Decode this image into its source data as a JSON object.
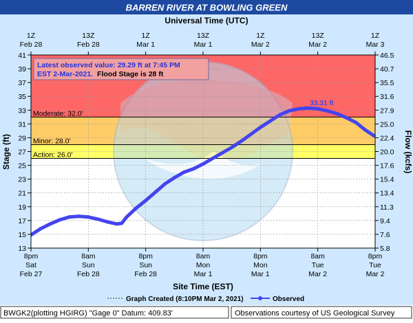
{
  "chart_data": {
    "type": "line",
    "title": "BARREN RIVER AT BOWLING GREEN",
    "top_axis_title": "Universal Time (UTC)",
    "top_ticks": [
      {
        "time": "2021-02-28T01:00Z",
        "line1": "1Z",
        "line2": "Feb 28"
      },
      {
        "time": "2021-02-28T13:00Z",
        "line1": "13Z",
        "line2": "Feb 28"
      },
      {
        "time": "2021-03-01T01:00Z",
        "line1": "1Z",
        "line2": "Mar  1"
      },
      {
        "time": "2021-03-01T13:00Z",
        "line1": "13Z",
        "line2": "Mar  1"
      },
      {
        "time": "2021-03-02T01:00Z",
        "line1": "1Z",
        "line2": "Mar  2"
      },
      {
        "time": "2021-03-02T13:00Z",
        "line1": "13Z",
        "line2": "Mar  2"
      },
      {
        "time": "2021-03-03T01:00Z",
        "line1": "1Z",
        "line2": "Mar  3"
      }
    ],
    "bottom_axis_title": "Site Time (EST)",
    "bottom_ticks": [
      {
        "time": "2021-02-27T20:00",
        "line1": "8pm",
        "line2": "Sat",
        "line3": "Feb 27"
      },
      {
        "time": "2021-02-28T08:00",
        "line1": "8am",
        "line2": "Sun",
        "line3": "Feb 28"
      },
      {
        "time": "2021-02-28T20:00",
        "line1": "8pm",
        "line2": "Sun",
        "line3": "Feb 28"
      },
      {
        "time": "2021-03-01T08:00",
        "line1": "8am",
        "line2": "Mon",
        "line3": "Mar 1"
      },
      {
        "time": "2021-03-01T20:00",
        "line1": "8pm",
        "line2": "Mon",
        "line3": "Mar 1"
      },
      {
        "time": "2021-03-02T08:00",
        "line1": "8am",
        "line2": "Tue",
        "line3": "Mar 2"
      },
      {
        "time": "2021-03-02T20:00",
        "line1": "8pm",
        "line2": "Tue",
        "line3": "Mar 2"
      }
    ],
    "xlim": [
      "2021-02-27T20:00",
      "2021-03-02T20:00"
    ],
    "ylabel": "Stage (ft)",
    "ylim": [
      13,
      41
    ],
    "y_ticks": [
      "13",
      "15",
      "17",
      "19",
      "21",
      "23",
      "25",
      "27",
      "29",
      "31",
      "33",
      "35",
      "37",
      "39",
      "41"
    ],
    "y2label": "Flow (kcfs)",
    "y2_ticks": [
      {
        "stage": 13,
        "label": "5.8"
      },
      {
        "stage": 15,
        "label": "7.6"
      },
      {
        "stage": 17,
        "label": "9.4"
      },
      {
        "stage": 19,
        "label": "11.3"
      },
      {
        "stage": 21,
        "label": "13.4"
      },
      {
        "stage": 23,
        "label": "15.4"
      },
      {
        "stage": 25,
        "label": "17.6"
      },
      {
        "stage": 27,
        "label": "20.0"
      },
      {
        "stage": 29,
        "label": "22.4"
      },
      {
        "stage": 31,
        "label": "25.0"
      },
      {
        "stage": 33,
        "label": "27.9"
      },
      {
        "stage": 35,
        "label": "31.6"
      },
      {
        "stage": 37,
        "label": "35.5"
      },
      {
        "stage": 39,
        "label": "40.7"
      },
      {
        "stage": 41,
        "label": "46.5"
      }
    ],
    "grid": true,
    "flood_categories": [
      {
        "name": "Action",
        "label": "Action: 26.0'",
        "stage": 26.0,
        "color": "#ffff66"
      },
      {
        "name": "Minor",
        "label": "Minor: 28.0'",
        "stage": 28.0,
        "color": "#ffcc66"
      },
      {
        "name": "Moderate",
        "label": "Moderate: 32.0'",
        "stage": 32.0,
        "color": "#ff6666"
      }
    ],
    "series": [
      {
        "name": "Observed",
        "color": "#4444ee",
        "points": [
          [
            "2021-02-27T20:00",
            14.9
          ],
          [
            "2021-02-27T22:00",
            15.8
          ],
          [
            "2021-02-28T00:00",
            16.5
          ],
          [
            "2021-02-28T02:00",
            17.1
          ],
          [
            "2021-02-28T04:00",
            17.5
          ],
          [
            "2021-02-28T06:00",
            17.6
          ],
          [
            "2021-02-28T08:00",
            17.5
          ],
          [
            "2021-02-28T10:00",
            17.2
          ],
          [
            "2021-02-28T12:00",
            16.8
          ],
          [
            "2021-02-28T14:00",
            16.5
          ],
          [
            "2021-02-28T15:00",
            16.6
          ],
          [
            "2021-02-28T16:00",
            17.5
          ],
          [
            "2021-02-28T18:00",
            18.8
          ],
          [
            "2021-02-28T20:00",
            19.9
          ],
          [
            "2021-02-28T22:00",
            21.1
          ],
          [
            "2021-03-01T00:00",
            22.3
          ],
          [
            "2021-03-01T02:00",
            23.2
          ],
          [
            "2021-03-01T04:00",
            24.0
          ],
          [
            "2021-03-01T06:00",
            24.5
          ],
          [
            "2021-03-01T08:00",
            25.2
          ],
          [
            "2021-03-01T10:00",
            26.0
          ],
          [
            "2021-03-01T12:00",
            26.8
          ],
          [
            "2021-03-01T14:00",
            27.6
          ],
          [
            "2021-03-01T16:00",
            28.5
          ],
          [
            "2021-03-01T18:00",
            29.5
          ],
          [
            "2021-03-01T20:00",
            30.5
          ],
          [
            "2021-03-01T22:00",
            31.4
          ],
          [
            "2021-03-02T00:00",
            32.3
          ],
          [
            "2021-03-02T02:00",
            32.9
          ],
          [
            "2021-03-02T04:00",
            33.2
          ],
          [
            "2021-03-02T06:00",
            33.31
          ],
          [
            "2021-03-02T08:00",
            33.2
          ],
          [
            "2021-03-02T10:00",
            32.9
          ],
          [
            "2021-03-02T12:00",
            32.5
          ],
          [
            "2021-03-02T14:00",
            31.9
          ],
          [
            "2021-03-02T16:00",
            31.2
          ],
          [
            "2021-03-02T18:00",
            30.1
          ],
          [
            "2021-03-02T19:45",
            29.29
          ]
        ]
      }
    ],
    "annotations": {
      "latest_line1": "Latest observed value: 29.29 ft at 7:45 PM",
      "latest_line2": "EST 2-Mar-2021.",
      "flood_stage_text": "Flood Stage is 28 ft",
      "crest_label": "33.31 ft",
      "crest_time": "2021-03-02T06:00",
      "crest_stage": 33.31
    },
    "legend": {
      "placement": "bottom",
      "graph_created": "Graph Created (8:10PM Mar 2, 2021)",
      "observed": "Observed"
    },
    "watermark_text": "NATIONAL OCEANIC AND ATMOSPHERIC ADMINISTRATION · U.S. DEPARTMENT OF COMMERCE · NOAA"
  },
  "footer": {
    "left": "BWGK2(plotting HGIRG) \"Gage 0\" Datum: 409.83'",
    "right": "Observations courtesy of US Geological Survey"
  },
  "colors": {
    "title_bg": "#1d4aa0",
    "frame_bg": "#cfe8ff",
    "observed": "#4444ee",
    "major_band": "#ff6666"
  }
}
